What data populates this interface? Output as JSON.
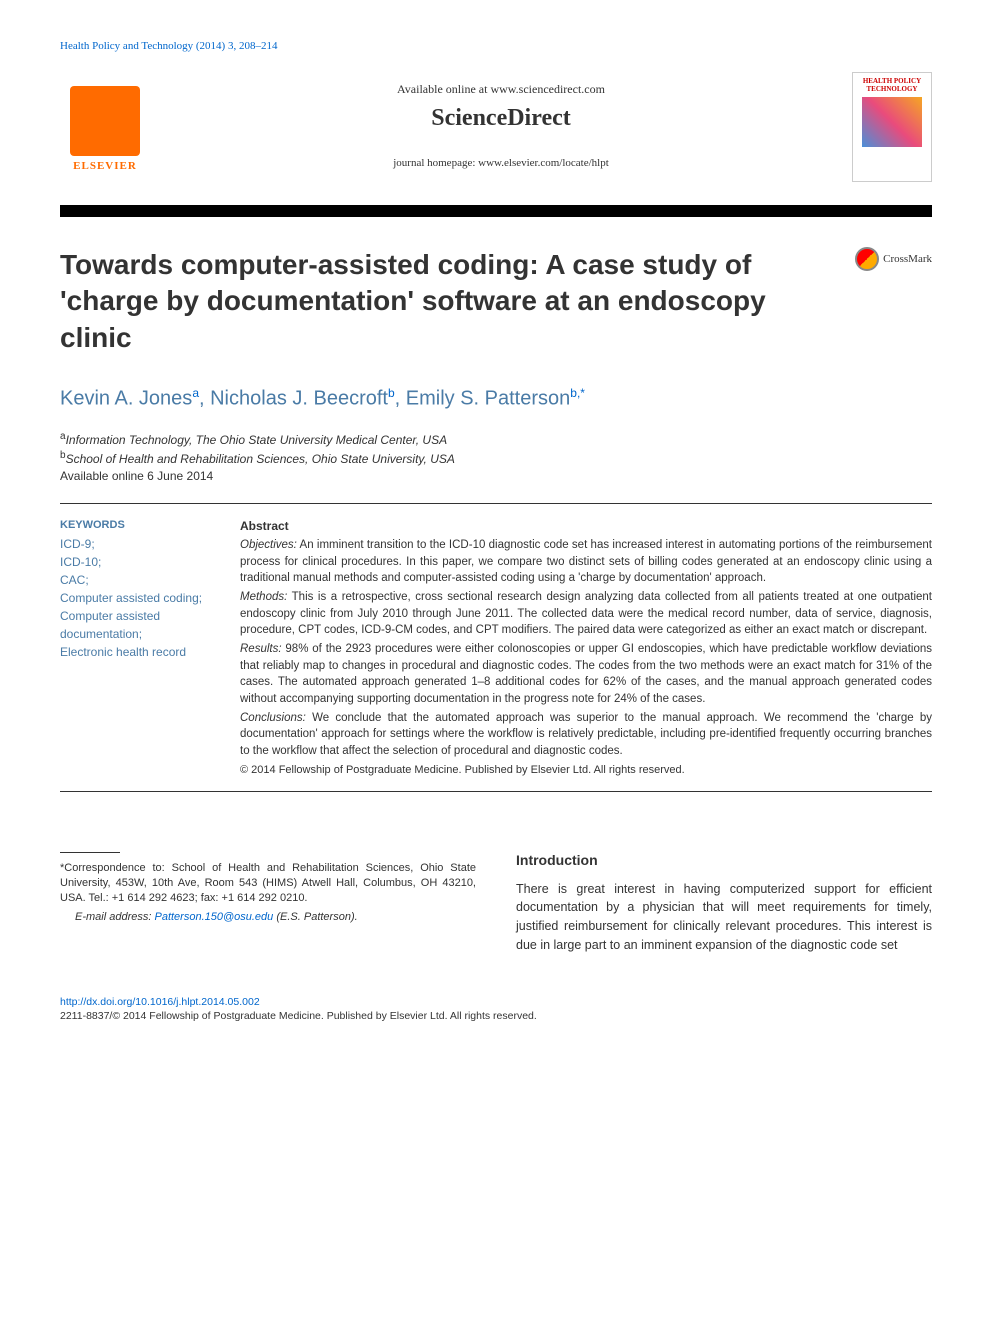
{
  "header": {
    "citation": "Health Policy and Technology (2014) 3, 208–214",
    "available_online": "Available online at www.sciencedirect.com",
    "sciencedirect": "ScienceDirect",
    "journal_homepage": "journal homepage: www.elsevier.com/locate/hlpt",
    "elsevier_label": "ELSEVIER",
    "journal_cover_title": "HEALTH POLICY TECHNOLOGY"
  },
  "article": {
    "title": "Towards computer-assisted coding: A case study of 'charge by documentation' software at an endoscopy clinic",
    "crossmark": "CrossMark"
  },
  "authors": {
    "list": "Kevin A. Jonesᵃ, Nicholas J. Beecroftᵇ, Emily S. Pattersonᵇ,*",
    "a1_name": "Kevin A. Jones",
    "a1_sup": "a",
    "a2_name": ", Nicholas J. Beecroft",
    "a2_sup": "b",
    "a3_name": ", Emily S. Patterson",
    "a3_sup": "b,*"
  },
  "affiliations": {
    "a": "Information Technology, The Ohio State University Medical Center, USA",
    "b": "School of Health and Rehabilitation Sciences, Ohio State University, USA",
    "available_date": "Available online 6 June 2014"
  },
  "keywords": {
    "heading": "KEYWORDS",
    "items": [
      "ICD-9;",
      "ICD-10;",
      "CAC;",
      "Computer assisted coding;",
      "Computer assisted documentation;",
      "Electronic health record"
    ]
  },
  "abstract": {
    "heading": "Abstract",
    "objectives_label": "Objectives:",
    "objectives": "An imminent transition to the ICD-10 diagnostic code set has increased interest in automating portions of the reimbursement process for clinical procedures. In this paper, we compare two distinct sets of billing codes generated at an endoscopy clinic using a traditional manual methods and computer-assisted coding using a 'charge by documentation' approach.",
    "methods_label": "Methods:",
    "methods": "This is a retrospective, cross sectional research design analyzing data collected from all patients treated at one outpatient endoscopy clinic from July 2010 through June 2011. The collected data were the medical record number, data of service, diagnosis, procedure, CPT codes, ICD-9-CM codes, and CPT modifiers. The paired data were categorized as either an exact match or discrepant.",
    "results_label": "Results:",
    "results": "98% of the 2923 procedures were either colonoscopies or upper GI endoscopies, which have predictable workflow deviations that reliably map to changes in procedural and diagnostic codes. The codes from the two methods were an exact match for 31% of the cases. The automated approach generated 1–8 additional codes for 62% of the cases, and the manual approach generated codes without accompanying supporting documentation in the progress note for 24% of the cases.",
    "conclusions_label": "Conclusions:",
    "conclusions": "We conclude that the automated approach was superior to the manual approach. We recommend the 'charge by documentation' approach for settings where the workflow is relatively predictable, including pre-identified frequently occurring branches to the workflow that affect the selection of procedural and diagnostic codes.",
    "copyright": "© 2014 Fellowship of Postgraduate Medicine. Published by Elsevier Ltd. All rights reserved."
  },
  "correspondence": {
    "text": "*Correspondence to: School of Health and Rehabilitation Sciences, Ohio State University, 453W, 10th Ave, Room 543 (HIMS) Atwell Hall, Columbus, OH 43210, USA. Tel.: +1 614 292 4623; fax: +1 614 292 0210.",
    "email_label": "E-mail address: ",
    "email": "Patterson.150@osu.edu",
    "email_suffix": " (E.S. Patterson)."
  },
  "introduction": {
    "heading": "Introduction",
    "text": "There is great interest in having computerized support for efficient documentation by a physician that will meet requirements for timely, justified reimbursement for clinically relevant procedures. This interest is due in large part to an imminent expansion of the diagnostic code set"
  },
  "footer": {
    "doi": "http://dx.doi.org/10.1016/j.hlpt.2014.05.002",
    "issn_copyright": "2211-8837/© 2014 Fellowship of Postgraduate Medicine. Published by Elsevier Ltd. All rights reserved."
  }
}
